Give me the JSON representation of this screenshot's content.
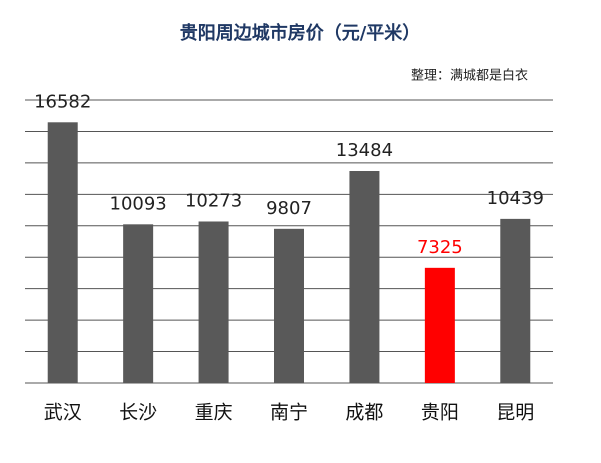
{
  "chart_data": {
    "type": "bar",
    "title": "贵阳周边城市房价（元/平米）",
    "subtitle": "整理：满城都是白衣",
    "categories": [
      "武汉",
      "长沙",
      "重庆",
      "南宁",
      "成都",
      "贵阳",
      "昆明"
    ],
    "values": [
      16582,
      10093,
      10273,
      9807,
      13484,
      7325,
      10439
    ],
    "colors": [
      "#595959",
      "#595959",
      "#595959",
      "#595959",
      "#595959",
      "#ff0000",
      "#595959"
    ],
    "ylim": [
      0,
      18000
    ],
    "yticks": [
      0,
      2000,
      4000,
      6000,
      8000,
      10000,
      12000,
      14000,
      16000,
      18000
    ],
    "grid": true
  }
}
